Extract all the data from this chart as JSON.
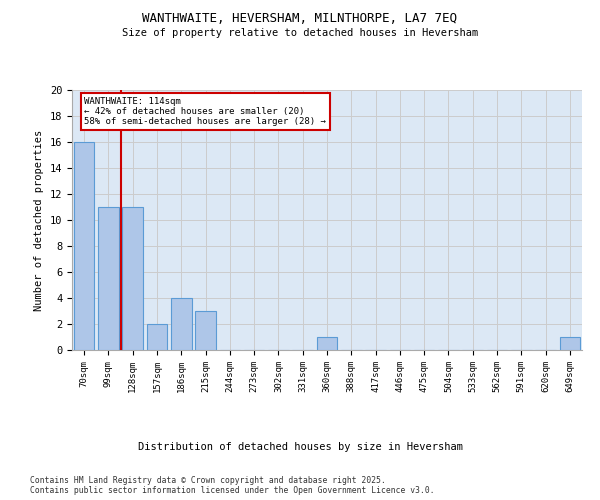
{
  "title_line1": "WANTHWAITE, HEVERSHAM, MILNTHORPE, LA7 7EQ",
  "title_line2": "Size of property relative to detached houses in Heversham",
  "xlabel": "Distribution of detached houses by size in Heversham",
  "ylabel": "Number of detached properties",
  "categories": [
    "70sqm",
    "99sqm",
    "128sqm",
    "157sqm",
    "186sqm",
    "215sqm",
    "244sqm",
    "273sqm",
    "302sqm",
    "331sqm",
    "360sqm",
    "388sqm",
    "417sqm",
    "446sqm",
    "475sqm",
    "504sqm",
    "533sqm",
    "562sqm",
    "591sqm",
    "620sqm",
    "649sqm"
  ],
  "values": [
    16,
    11,
    11,
    2,
    4,
    3,
    0,
    0,
    0,
    0,
    1,
    0,
    0,
    0,
    0,
    0,
    0,
    0,
    0,
    0,
    1
  ],
  "bar_color": "#aec6e8",
  "bar_edge_color": "#5b9bd5",
  "red_line_x": 1.5,
  "annotation_title": "WANTHWAITE: 114sqm",
  "annotation_line1": "← 42% of detached houses are smaller (20)",
  "annotation_line2": "58% of semi-detached houses are larger (28) →",
  "annotation_box_color": "#ffffff",
  "annotation_box_edge_color": "#cc0000",
  "red_line_color": "#cc0000",
  "ylim": [
    0,
    20
  ],
  "yticks": [
    0,
    2,
    4,
    6,
    8,
    10,
    12,
    14,
    16,
    18,
    20
  ],
  "grid_color": "#cccccc",
  "background_color": "#dce8f5",
  "footer_line1": "Contains HM Land Registry data © Crown copyright and database right 2025.",
  "footer_line2": "Contains public sector information licensed under the Open Government Licence v3.0."
}
